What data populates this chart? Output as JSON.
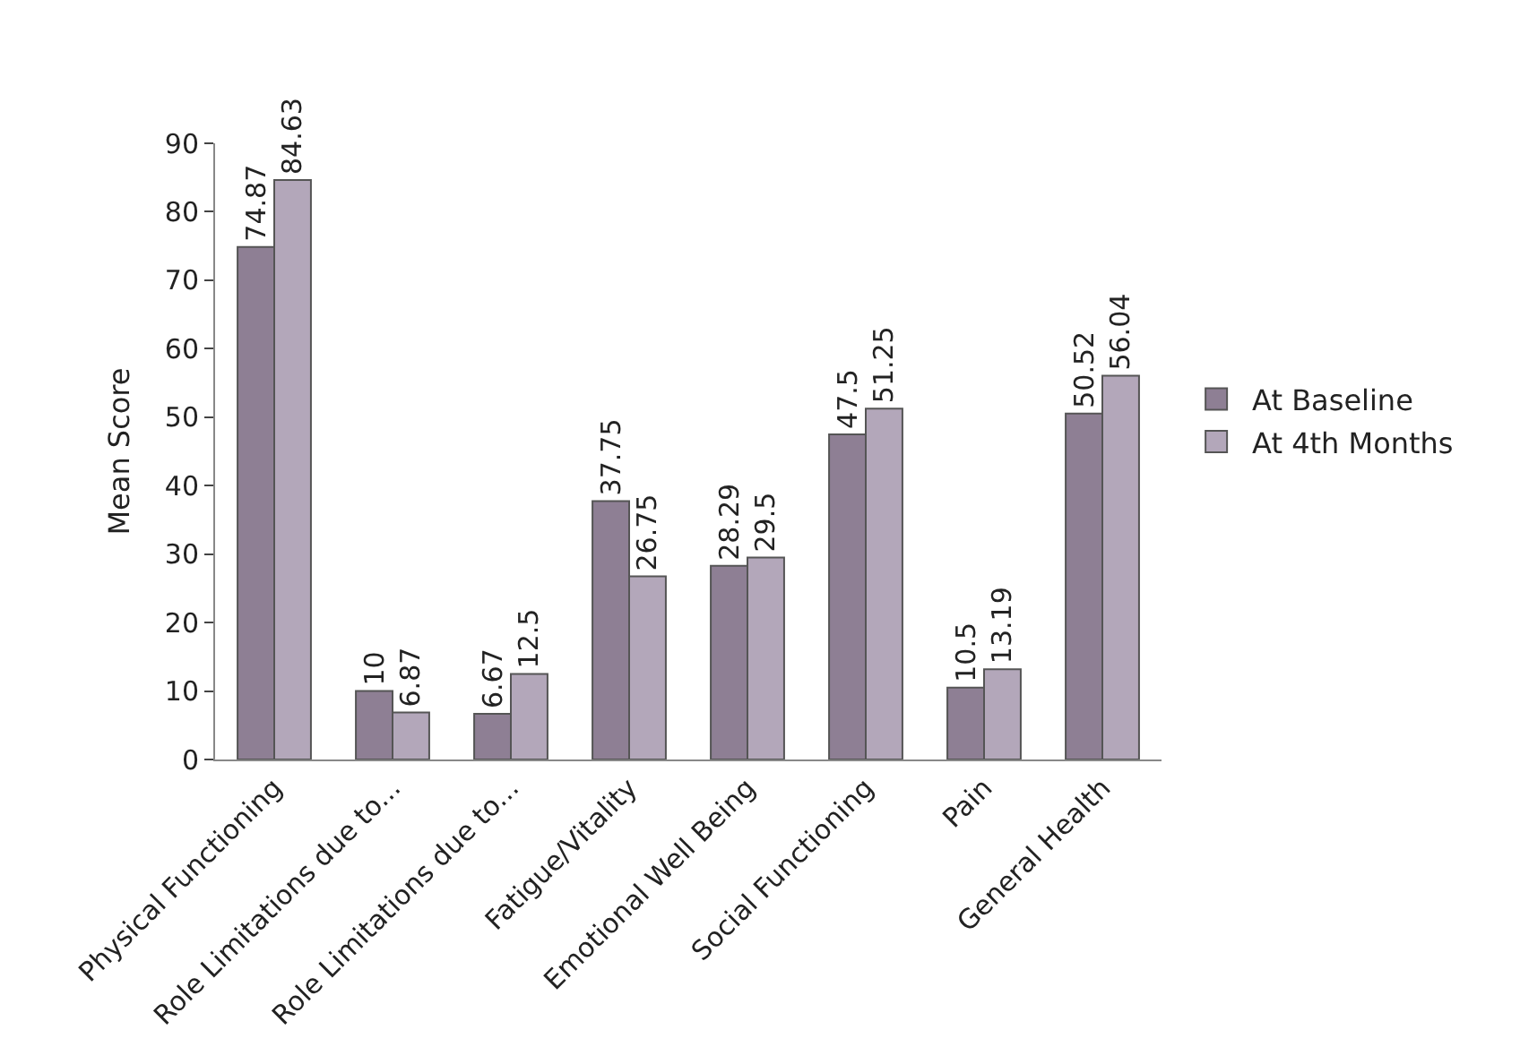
{
  "chart_data": {
    "type": "bar",
    "ylabel": "Mean Score",
    "categories": [
      "Physical Functioning",
      "Role Limitations due to...",
      "Role Limitations due to...",
      "Fatigue/Vitality",
      "Emotional Well Being",
      "Social Functioning",
      "Pain",
      "General Health"
    ],
    "series": [
      {
        "name": "At Baseline",
        "color": "#8e7f94",
        "values": [
          74.87,
          10,
          6.67,
          37.75,
          28.29,
          47.5,
          10.5,
          50.52
        ]
      },
      {
        "name": "At 4th Months",
        "color": "#b3a7ba",
        "values": [
          84.63,
          6.87,
          12.5,
          26.75,
          29.5,
          51.25,
          13.19,
          56.04
        ]
      }
    ],
    "ylim": [
      0,
      90
    ],
    "yticks": [
      0,
      10,
      20,
      30,
      40,
      50,
      60,
      70,
      80,
      90
    ],
    "data_labels": true,
    "legend": "right"
  }
}
